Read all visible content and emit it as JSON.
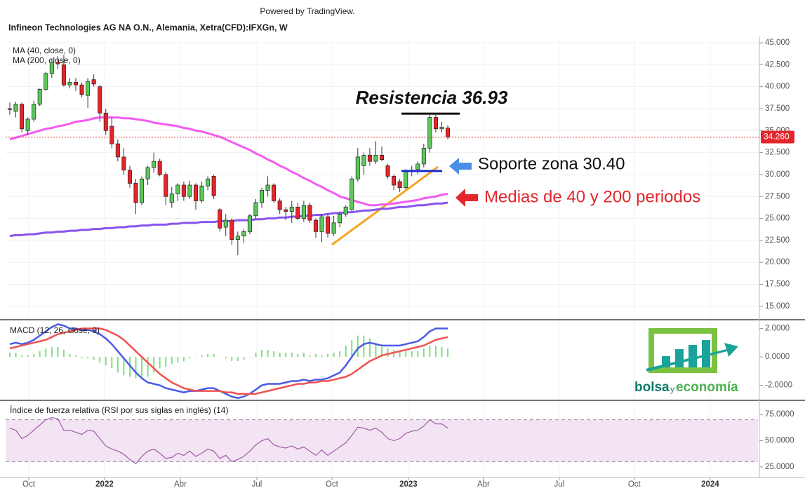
{
  "header": {
    "powered_by": "Powered by TradingView."
  },
  "logo": {
    "parts": [
      "bolsa",
      "y",
      "economía"
    ]
  },
  "chart_data": [
    {
      "type": "candlestick",
      "title": "Infineon Technologies AG NA O.N., Alemania, Xetra(CFD):IFXGn, W",
      "up_color": "#5cc85c",
      "down_color": "#e3262c",
      "wick_color": "#333333",
      "open": [
        37.5,
        37.2,
        38.0,
        35.0,
        36.3,
        38.0,
        39.7,
        41.5,
        42.8,
        42.5,
        40.2,
        40.5,
        40.2,
        39.0,
        40.8,
        40.0,
        37.0,
        35.5,
        33.5,
        32.0,
        30.5,
        29.0,
        26.8,
        29.5,
        30.8,
        31.5,
        30.0,
        26.8,
        27.8,
        28.8,
        27.5,
        28.8,
        27.0,
        28.7,
        29.8,
        26.0,
        24.0,
        24.8,
        22.6,
        23.0,
        23.5,
        25.3,
        26.8,
        28.2,
        28.8,
        27.0,
        26.0,
        25.8,
        26.3,
        25.0,
        26.5,
        24.8,
        23.5,
        25.2,
        23.3,
        24.5,
        25.5,
        26.0,
        29.5,
        31.0,
        32.2,
        31.5,
        32.2,
        31.0,
        29.8,
        29.2,
        28.5,
        30.4,
        30.6,
        31.2,
        33.0,
        36.5,
        35.2,
        35.3
      ],
      "high": [
        38.2,
        38.3,
        38.2,
        36.5,
        38.4,
        39.8,
        41.7,
        43.2,
        43.5,
        43.6,
        41.0,
        41.0,
        40.5,
        41.0,
        41.4,
        40.2,
        37.5,
        36.5,
        34.0,
        33.0,
        31.0,
        29.5,
        29.8,
        31.0,
        32.5,
        31.8,
        30.3,
        28.6,
        29.0,
        29.2,
        29.3,
        29.0,
        29.2,
        29.8,
        30.0,
        26.2,
        25.5,
        25.0,
        23.5,
        23.8,
        25.5,
        27.2,
        28.5,
        29.8,
        29.0,
        27.3,
        26.3,
        27.0,
        26.8,
        27.0,
        26.8,
        25.0,
        25.5,
        25.5,
        25.3,
        25.8,
        26.5,
        29.8,
        33.0,
        32.5,
        33.0,
        33.8,
        33.2,
        31.2,
        30.0,
        29.5,
        30.6,
        31.0,
        31.5,
        33.5,
        36.8,
        36.9,
        36.0,
        35.6
      ],
      "low": [
        36.8,
        36.5,
        34.8,
        34.5,
        36.0,
        37.8,
        39.5,
        41.0,
        42.0,
        40.0,
        39.8,
        39.5,
        38.8,
        37.6,
        40.0,
        36.0,
        34.5,
        33.0,
        31.5,
        30.0,
        28.5,
        25.5,
        26.5,
        28.8,
        30.2,
        29.8,
        26.5,
        26.2,
        27.0,
        27.0,
        27.2,
        26.0,
        26.8,
        28.2,
        27.2,
        23.5,
        23.0,
        22.0,
        20.8,
        22.2,
        23.2,
        25.0,
        26.2,
        27.5,
        26.8,
        25.5,
        24.8,
        24.5,
        24.8,
        24.6,
        24.5,
        22.8,
        22.3,
        22.8,
        23.0,
        24.0,
        25.2,
        25.8,
        29.2,
        30.0,
        31.0,
        31.2,
        31.5,
        29.5,
        28.2,
        28.0,
        28.3,
        29.8,
        30.0,
        30.8,
        32.5,
        34.8,
        34.8,
        34.0
      ],
      "close": [
        37.4,
        38.0,
        35.2,
        36.3,
        38.0,
        39.7,
        41.5,
        42.8,
        42.6,
        40.2,
        40.5,
        40.2,
        39.1,
        40.6,
        40.3,
        37.0,
        35.0,
        33.5,
        32.0,
        30.5,
        29.0,
        26.8,
        29.5,
        30.8,
        31.5,
        30.0,
        27.5,
        27.8,
        28.8,
        27.5,
        28.8,
        27.0,
        28.7,
        29.5,
        27.6,
        23.9,
        24.8,
        22.6,
        23.0,
        23.5,
        25.3,
        26.8,
        28.2,
        28.8,
        27.0,
        26.0,
        25.8,
        26.3,
        25.0,
        26.5,
        24.8,
        23.5,
        25.2,
        23.3,
        24.5,
        25.5,
        26.3,
        29.5,
        32.0,
        32.2,
        31.5,
        32.2,
        31.7,
        29.8,
        28.8,
        28.5,
        30.4,
        30.5,
        31.2,
        33.0,
        36.5,
        35.2,
        35.4,
        34.26
      ],
      "series": [
        {
          "name": "MA (40, close, 0)",
          "color": "#f25cf0",
          "values": [
            34.0,
            34.2,
            34.4,
            34.6,
            34.8,
            35.0,
            35.2,
            35.3,
            35.5,
            35.6,
            35.8,
            36.0,
            36.1,
            36.2,
            36.4,
            36.5,
            36.5,
            36.5,
            36.5,
            36.4,
            36.4,
            36.3,
            36.2,
            36.1,
            35.9,
            35.8,
            35.7,
            35.6,
            35.5,
            35.3,
            35.2,
            35.0,
            34.9,
            34.7,
            34.5,
            34.3,
            34.0,
            33.7,
            33.4,
            33.1,
            32.8,
            32.4,
            32.1,
            31.7,
            31.4,
            31.0,
            30.7,
            30.3,
            30.0,
            29.6,
            29.3,
            28.9,
            28.6,
            28.2,
            27.9,
            27.5,
            27.3,
            27.1,
            26.9,
            26.7,
            26.5,
            26.5,
            26.6,
            26.6,
            26.7,
            26.8,
            26.9,
            27.0,
            27.1,
            27.3,
            27.4,
            27.5,
            27.7,
            27.8
          ]
        },
        {
          "name": "MA (200, close, 0)",
          "color": "#8855ee",
          "values": [
            23.0,
            23.1,
            23.1,
            23.2,
            23.2,
            23.3,
            23.4,
            23.4,
            23.5,
            23.5,
            23.6,
            23.6,
            23.7,
            23.7,
            23.8,
            23.8,
            23.9,
            23.9,
            24.0,
            24.0,
            24.1,
            24.1,
            24.2,
            24.2,
            24.3,
            24.3,
            24.3,
            24.4,
            24.4,
            24.5,
            24.5,
            24.5,
            24.6,
            24.6,
            24.6,
            24.7,
            24.7,
            24.7,
            24.8,
            24.8,
            24.8,
            24.9,
            24.9,
            25.0,
            25.0,
            25.1,
            25.1,
            25.2,
            25.2,
            25.3,
            25.3,
            25.4,
            25.4,
            25.5,
            25.6,
            25.6,
            25.7,
            25.7,
            25.8,
            25.9,
            25.9,
            26.0,
            26.1,
            26.1,
            26.2,
            26.3,
            26.3,
            26.4,
            26.5,
            26.5,
            26.6,
            26.7,
            26.7,
            26.8
          ]
        }
      ],
      "last_price": {
        "value": 34.26,
        "label": "34.260",
        "color": "#e3262c"
      },
      "annotations": [
        {
          "text": "Resistencia 36.93",
          "value": 36.93,
          "color": "#111111"
        },
        {
          "text": "Soporte zona 30.40",
          "value": 30.4,
          "color": "#1a2bd0"
        },
        {
          "text": "Medias de 40 y 200 periodos",
          "color": "#e3262c"
        }
      ],
      "xlim": [
        -0.7,
        124.7
      ],
      "ylim": [
        13.55,
        45.48
      ],
      "yticks": [
        {
          "value": 45,
          "label": "45.000"
        },
        {
          "value": 42.5,
          "label": "42.500"
        },
        {
          "value": 40,
          "label": "40.000"
        },
        {
          "value": 37.5,
          "label": "37.500"
        },
        {
          "value": 35,
          "label": "35.000"
        },
        {
          "value": 32.5,
          "label": "32.500"
        },
        {
          "value": 30,
          "label": "30.000"
        },
        {
          "value": 27.5,
          "label": "27.500"
        },
        {
          "value": 25,
          "label": "25.000"
        },
        {
          "value": 22.5,
          "label": "22.500"
        },
        {
          "value": 20,
          "label": "20.000"
        },
        {
          "value": 17.5,
          "label": "17.500"
        },
        {
          "value": 15,
          "label": "15.000"
        }
      ],
      "grid": true
    },
    {
      "type": "macd",
      "title": "MACD (12, 26, close, 9)",
      "series": [
        {
          "color": "#4a5be8",
          "values": [
            0.9,
            1.0,
            0.9,
            1.0,
            1.2,
            1.5,
            1.8,
            2.1,
            2.3,
            2.2,
            2.0,
            2.0,
            1.9,
            1.9,
            1.8,
            1.6,
            1.3,
            0.9,
            0.4,
            -0.1,
            -0.6,
            -1.1,
            -1.5,
            -1.8,
            -1.9,
            -2.0,
            -2.2,
            -2.3,
            -2.4,
            -2.5,
            -2.4,
            -2.4,
            -2.3,
            -2.2,
            -2.2,
            -2.4,
            -2.6,
            -2.8,
            -2.9,
            -2.8,
            -2.6,
            -2.3,
            -2.0,
            -1.9,
            -1.9,
            -1.9,
            -1.8,
            -1.7,
            -1.7,
            -1.6,
            -1.7,
            -1.6,
            -1.6,
            -1.5,
            -1.3,
            -1.1,
            -0.6,
            0.0,
            0.6,
            0.9,
            1.0,
            0.9,
            0.8,
            0.8,
            0.8,
            0.8,
            0.9,
            1.0,
            1.1,
            1.4,
            1.8,
            2.0,
            2.0,
            2.0
          ]
        },
        {
          "color": "#f0524f",
          "values": [
            0.6,
            0.7,
            0.8,
            0.9,
            1.0,
            1.1,
            1.2,
            1.4,
            1.6,
            1.7,
            1.8,
            1.9,
            2.0,
            2.0,
            2.0,
            2.0,
            1.9,
            1.7,
            1.5,
            1.2,
            0.8,
            0.4,
            0.0,
            -0.4,
            -0.8,
            -1.2,
            -1.5,
            -1.8,
            -2.0,
            -2.2,
            -2.3,
            -2.4,
            -2.4,
            -2.4,
            -2.4,
            -2.4,
            -2.5,
            -2.5,
            -2.6,
            -2.6,
            -2.6,
            -2.6,
            -2.5,
            -2.4,
            -2.3,
            -2.2,
            -2.1,
            -2.0,
            -1.9,
            -1.9,
            -1.8,
            -1.8,
            -1.7,
            -1.7,
            -1.6,
            -1.5,
            -1.4,
            -1.2,
            -0.9,
            -0.6,
            -0.3,
            -0.1,
            0.1,
            0.2,
            0.3,
            0.4,
            0.5,
            0.6,
            0.7,
            0.8,
            1.0,
            1.2,
            1.3,
            1.4
          ]
        }
      ],
      "histogram": {
        "color": "#7ee07e",
        "values": [
          0.3,
          0.3,
          0.1,
          0.1,
          0.2,
          0.4,
          0.6,
          0.7,
          0.7,
          0.5,
          0.2,
          0.1,
          -0.1,
          -0.1,
          -0.2,
          -0.4,
          -0.6,
          -0.8,
          -1.1,
          -1.3,
          -1.4,
          -1.5,
          -1.5,
          -1.4,
          -1.1,
          -0.8,
          -0.7,
          -0.5,
          -0.4,
          -0.3,
          -0.1,
          0.0,
          0.1,
          0.2,
          0.2,
          0.0,
          -0.1,
          -0.3,
          -0.3,
          -0.2,
          0.0,
          0.3,
          0.5,
          0.5,
          0.4,
          0.3,
          0.3,
          0.3,
          0.2,
          0.3,
          0.1,
          0.2,
          0.1,
          0.2,
          0.3,
          0.4,
          0.8,
          1.2,
          1.5,
          1.5,
          1.3,
          1.0,
          0.7,
          0.6,
          0.5,
          0.4,
          0.4,
          0.4,
          0.4,
          0.6,
          0.8,
          0.8,
          0.7,
          0.6
        ]
      },
      "xlim": [
        -0.7,
        124.7
      ],
      "ylim": [
        -3.01,
        2.57
      ],
      "yticks": [
        {
          "value": 2,
          "label": "2.0000"
        },
        {
          "value": 0,
          "label": "0.0000"
        },
        {
          "value": -2,
          "label": "-2.0000"
        }
      ]
    },
    {
      "type": "line",
      "title": "Índice de fuerza relativa (RSI por sus siglas en inglés) (14)",
      "color": "#a05aa8",
      "values": [
        62,
        60,
        52,
        55,
        60,
        65,
        70,
        72,
        71,
        60,
        60,
        58,
        56,
        60,
        59,
        52,
        45,
        42,
        40,
        37,
        32,
        28,
        35,
        40,
        42,
        38,
        33,
        34,
        38,
        36,
        40,
        35,
        38,
        42,
        40,
        33,
        36,
        30,
        32,
        35,
        40,
        46,
        50,
        52,
        46,
        44,
        43,
        45,
        42,
        44,
        40,
        36,
        41,
        36,
        40,
        44,
        48,
        55,
        63,
        62,
        60,
        62,
        58,
        52,
        50,
        52,
        57,
        59,
        60,
        64,
        70,
        66,
        66,
        62
      ],
      "bands": [
        30,
        70
      ],
      "band_color": "#f3e4f3",
      "xlim": [
        -0.7,
        124.7
      ],
      "ylim": [
        15.5,
        87.2
      ],
      "yticks": [
        {
          "value": 75,
          "label": "75.0000"
        },
        {
          "value": 50,
          "label": "50.0000"
        },
        {
          "value": 25,
          "label": "25.0000"
        }
      ],
      "xticks": [
        {
          "value": 3.16,
          "label": "Oct"
        },
        {
          "value": 15.79,
          "label": "2022"
        },
        {
          "value": 28.42,
          "label": "Abr"
        },
        {
          "value": 41.17,
          "label": "Jul"
        },
        {
          "value": 53.68,
          "label": "Oct"
        },
        {
          "value": 66.43,
          "label": "2023"
        },
        {
          "value": 78.95,
          "label": "Abr"
        },
        {
          "value": 91.58,
          "label": "Jul"
        },
        {
          "value": 104.09,
          "label": "Oct"
        },
        {
          "value": 116.73,
          "label": "2024"
        }
      ]
    }
  ]
}
